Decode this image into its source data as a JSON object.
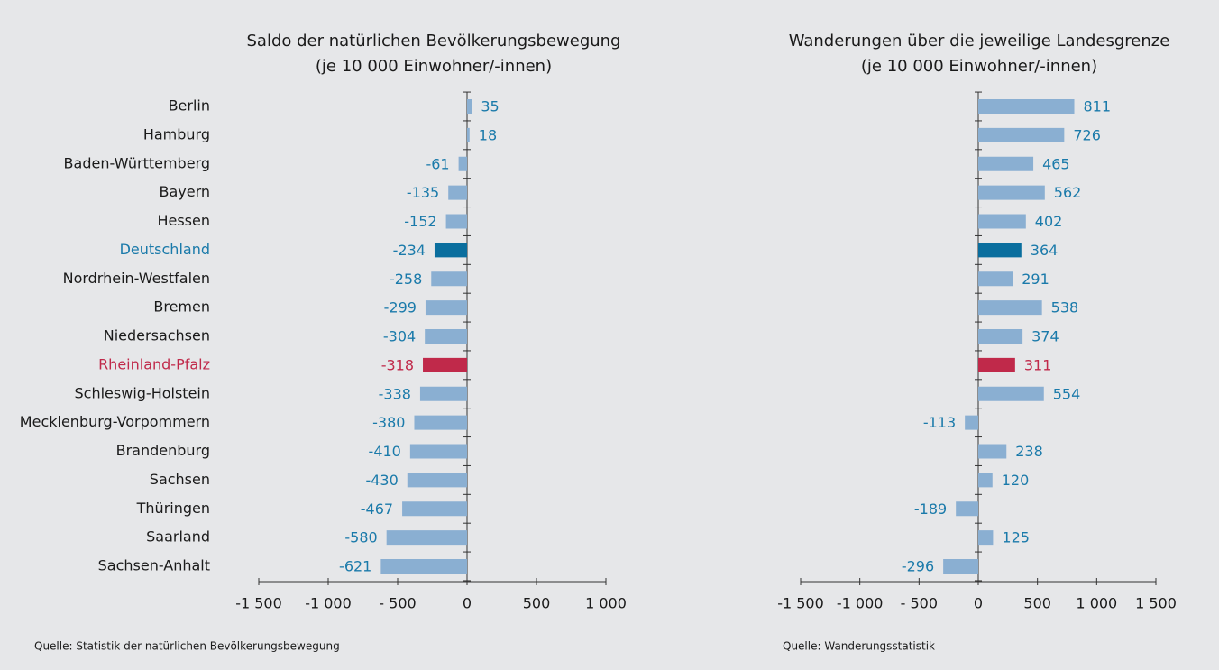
{
  "chart_data": [
    {
      "type": "barh",
      "title": "Saldo der natürlichen Bevölkerungsbewegung",
      "subtitle": "(je 10 000 Einwohner/-innen)",
      "categories": [
        "Berlin",
        "Hamburg",
        "Baden-Württemberg",
        "Bayern",
        "Hessen",
        "Deutschland",
        "Nordrhein-Westfalen",
        "Bremen",
        "Niedersachsen",
        "Rheinland-Pfalz",
        "Schleswig-Holstein",
        "Mecklenburg-Vorpommern",
        "Brandenburg",
        "Sachsen",
        "Thüringen",
        "Saarland",
        "Sachsen-Anhalt"
      ],
      "category_colors": [
        "#1a1a1a",
        "#1a1a1a",
        "#1a1a1a",
        "#1a1a1a",
        "#1a1a1a",
        "#1a7aaa",
        "#1a1a1a",
        "#1a1a1a",
        "#1a1a1a",
        "#c0294a",
        "#1a1a1a",
        "#1a1a1a",
        "#1a1a1a",
        "#1a1a1a",
        "#1a1a1a",
        "#1a1a1a",
        "#1a1a1a"
      ],
      "values": [
        35,
        18,
        -61,
        -135,
        -152,
        -234,
        -258,
        -299,
        -304,
        -318,
        -338,
        -380,
        -410,
        -430,
        -467,
        -580,
        -621
      ],
      "colors": [
        "#8aafd2",
        "#8aafd2",
        "#8aafd2",
        "#8aafd2",
        "#8aafd2",
        "#0a6e9e",
        "#8aafd2",
        "#8aafd2",
        "#8aafd2",
        "#c0294a",
        "#8aafd2",
        "#8aafd2",
        "#8aafd2",
        "#8aafd2",
        "#8aafd2",
        "#8aafd2",
        "#8aafd2"
      ],
      "label_colors": [
        "#1a7aaa",
        "#1a7aaa",
        "#1a7aaa",
        "#1a7aaa",
        "#1a7aaa",
        "#1a7aaa",
        "#1a7aaa",
        "#1a7aaa",
        "#1a7aaa",
        "#c0294a",
        "#1a7aaa",
        "#1a7aaa",
        "#1a7aaa",
        "#1a7aaa",
        "#1a7aaa",
        "#1a7aaa",
        "#1a7aaa"
      ],
      "xlim": [
        -1500,
        1000
      ],
      "xticks": [
        {
          "value": -1500,
          "label": "-1 500"
        },
        {
          "value": -1000,
          "label": "-1 000"
        },
        {
          "value": -500,
          "label": "- 500"
        },
        0,
        500,
        {
          "value": 1000,
          "label": "1 000"
        }
      ],
      "source": "Quelle: Statistik der natürlichen Bevölkerungsbewegung"
    },
    {
      "type": "barh",
      "title": "Wanderungen über die jeweilige Landesgrenze",
      "subtitle": "(je 10 000 Einwohner/-innen)",
      "values": [
        811,
        726,
        465,
        562,
        402,
        364,
        291,
        538,
        374,
        311,
        554,
        -113,
        238,
        120,
        -189,
        125,
        -296
      ],
      "colors": [
        "#8aafd2",
        "#8aafd2",
        "#8aafd2",
        "#8aafd2",
        "#8aafd2",
        "#0a6e9e",
        "#8aafd2",
        "#8aafd2",
        "#8aafd2",
        "#c0294a",
        "#8aafd2",
        "#8aafd2",
        "#8aafd2",
        "#8aafd2",
        "#8aafd2",
        "#8aafd2",
        "#8aafd2"
      ],
      "label_colors": [
        "#1a7aaa",
        "#1a7aaa",
        "#1a7aaa",
        "#1a7aaa",
        "#1a7aaa",
        "#1a7aaa",
        "#1a7aaa",
        "#1a7aaa",
        "#1a7aaa",
        "#c0294a",
        "#1a7aaa",
        "#1a7aaa",
        "#1a7aaa",
        "#1a7aaa",
        "#1a7aaa",
        "#1a7aaa",
        "#1a7aaa"
      ],
      "xlim": [
        -1500,
        1500
      ],
      "xticks": [
        {
          "value": -1500,
          "label": "-1 500"
        },
        {
          "value": -1000,
          "label": "-1 000"
        },
        {
          "value": -500,
          "label": "- 500"
        },
        0,
        500,
        {
          "value": 1000,
          "label": "1 000"
        },
        {
          "value": 1500,
          "label": "1 500"
        }
      ],
      "source": "Quelle: Wanderungsstatistik"
    }
  ]
}
